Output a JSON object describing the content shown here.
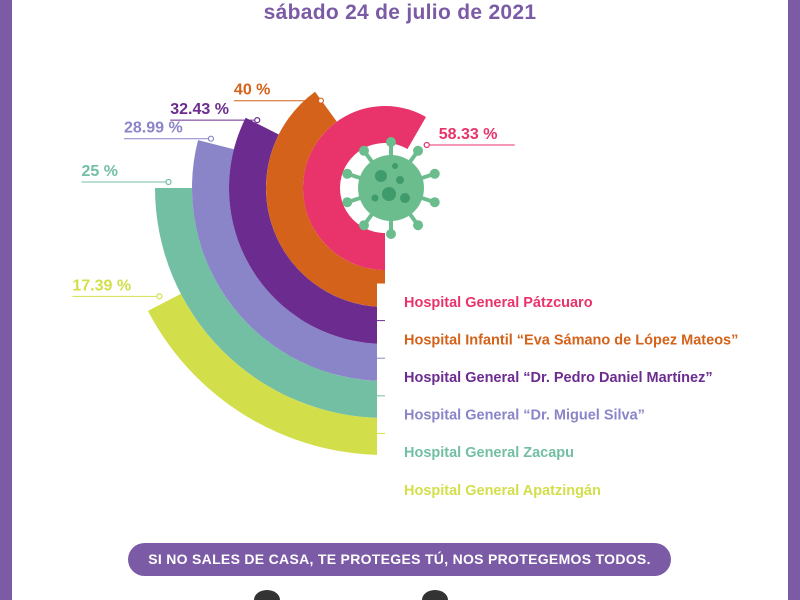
{
  "header": {
    "date": "sábado 24 de julio de 2021"
  },
  "chart_data": {
    "type": "radial-bar",
    "categories": [
      "Hospital General Pátzcuaro",
      "Hospital Infantil “Eva Sámano de López Mateos”",
      "Hospital General “Dr. Pedro Daniel Martínez”",
      "Hospital General “Dr. Miguel Silva”",
      "Hospital General Zacapu",
      "Hospital General Apatzingán"
    ],
    "values": [
      58.33,
      40,
      32.43,
      28.99,
      25,
      17.39
    ],
    "value_labels": [
      "58.33 %",
      "40 %",
      "32.43 %",
      "28.99 %",
      "25 %",
      "17.39 %"
    ],
    "colors": [
      "#e8336b",
      "#d4621a",
      "#6b2b8f",
      "#8a84c8",
      "#72bfa3",
      "#d3df4a"
    ],
    "center_icon": "virus-icon"
  },
  "footer": {
    "slogan": "SI NO SALES DE CASA, TE PROTEGES TÚ, NOS PROTEGEMOS TODOS."
  }
}
